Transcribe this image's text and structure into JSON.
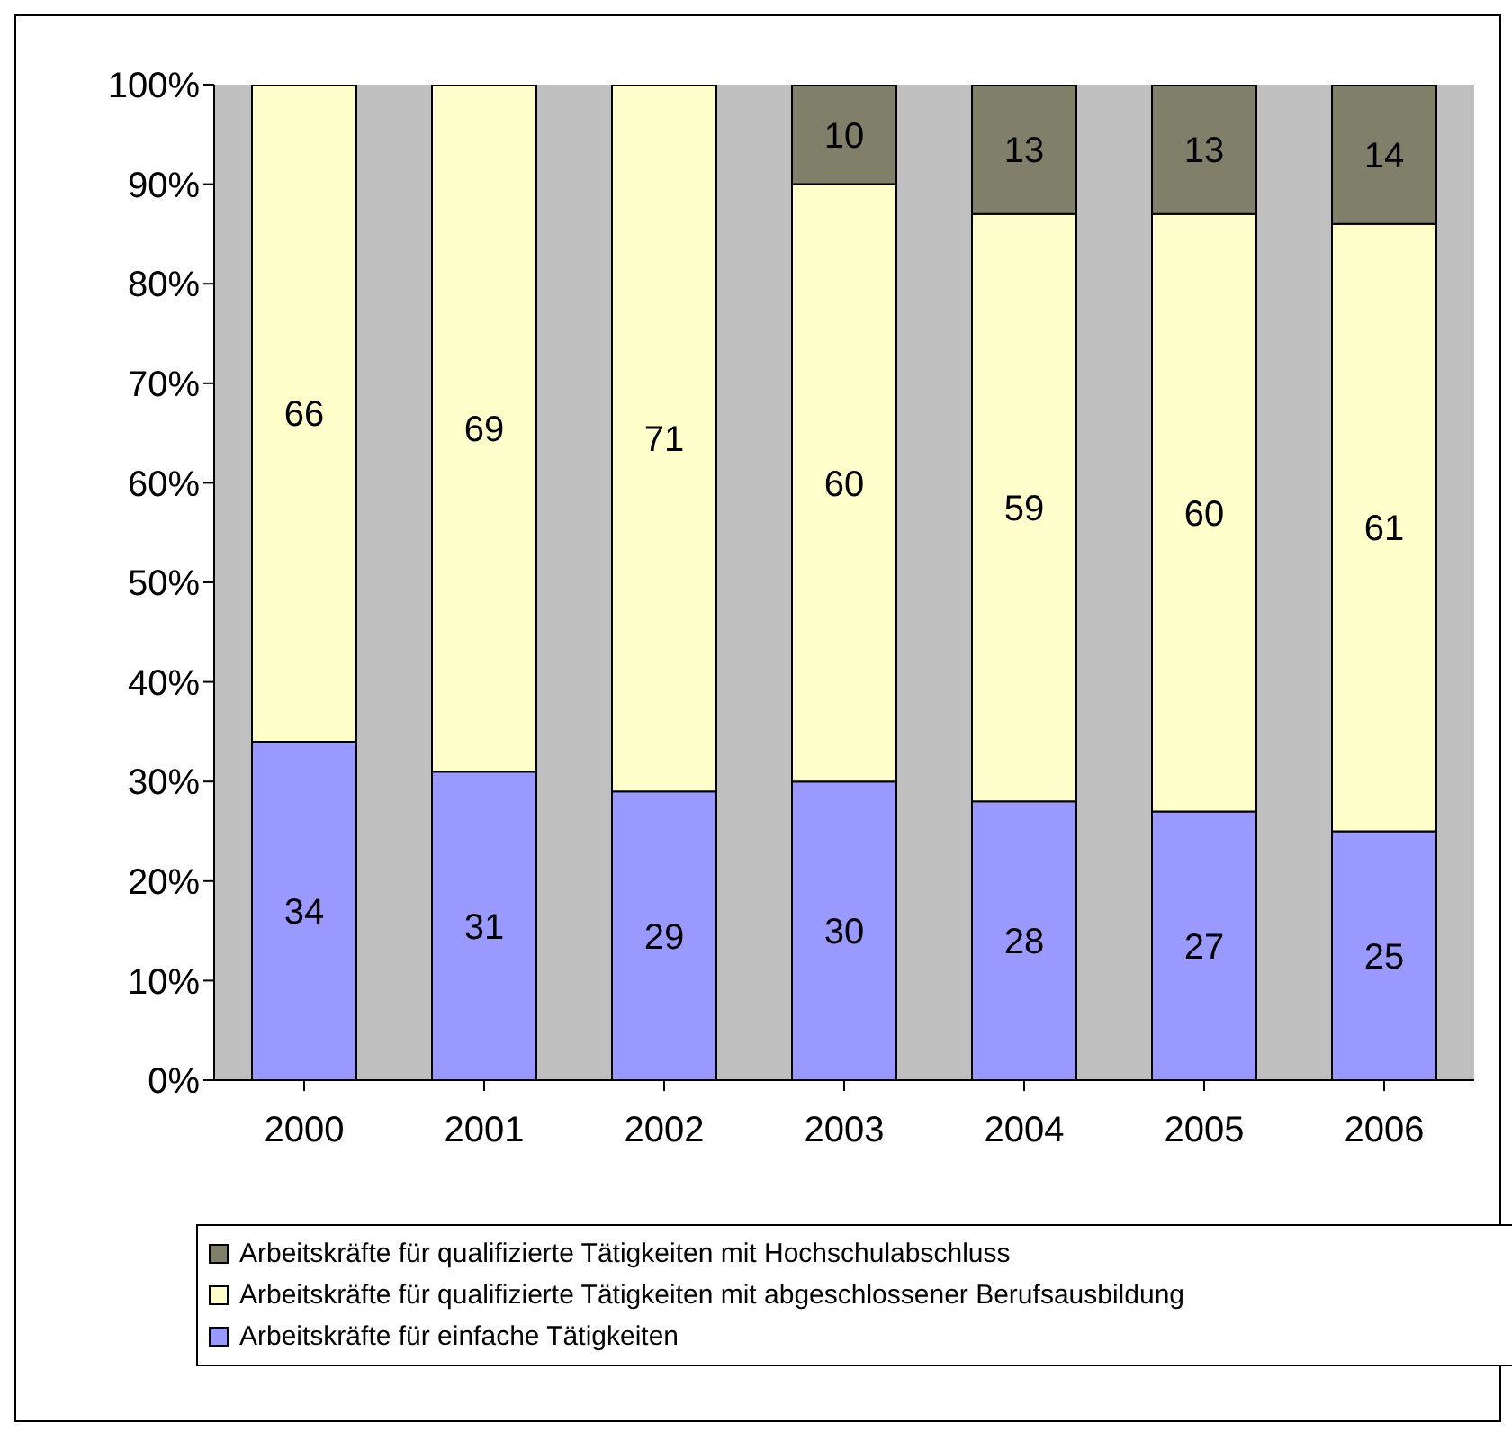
{
  "chart_data": {
    "type": "bar",
    "stacked": true,
    "categories": [
      "2000",
      "2001",
      "2002",
      "2003",
      "2004",
      "2005",
      "2006"
    ],
    "series": [
      {
        "name": "Arbeitskräfte für einfache Tätigkeiten",
        "color": "#9999ff",
        "values": [
          34,
          31,
          29,
          30,
          28,
          27,
          25
        ]
      },
      {
        "name": "Arbeitskräfte für qualifizierte Tätigkeiten mit abgeschlossener Berufsausbildung",
        "color": "#ffffcc",
        "values": [
          66,
          69,
          71,
          60,
          59,
          60,
          61
        ]
      },
      {
        "name": "Arbeitskräfte für qualifizierte Tätigkeiten mit Hochschulabschluss",
        "color": "#80806a",
        "values": [
          null,
          null,
          null,
          10,
          13,
          13,
          14
        ]
      }
    ],
    "ylim": [
      0,
      100
    ],
    "yticks": [
      {
        "value": 0,
        "label": "0%"
      },
      {
        "value": 10,
        "label": "10%"
      },
      {
        "value": 20,
        "label": "20%"
      },
      {
        "value": 30,
        "label": "30%"
      },
      {
        "value": 40,
        "label": "40%"
      },
      {
        "value": 50,
        "label": "50%"
      },
      {
        "value": 60,
        "label": "60%"
      },
      {
        "value": 70,
        "label": "70%"
      },
      {
        "value": 80,
        "label": "80%"
      },
      {
        "value": 90,
        "label": "90%"
      },
      {
        "value": 100,
        "label": "100%"
      }
    ],
    "grid": false,
    "legend": "bottom",
    "data_labels": true
  }
}
